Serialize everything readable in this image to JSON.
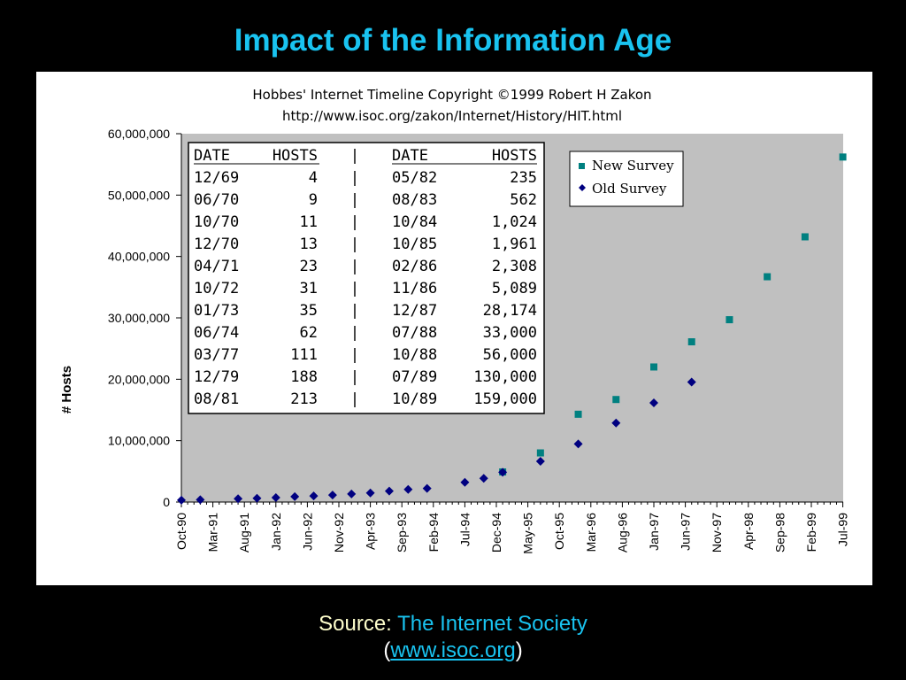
{
  "slide": {
    "title": "Impact of the Information Age",
    "source_prefix": "Source: ",
    "source_name": "The Internet Society",
    "source_open": "(",
    "source_link": "www.isoc.org",
    "source_close": ")"
  },
  "colors": {
    "background": "#000000",
    "title": "#19c3f0",
    "plot_area": "#c0c0c0",
    "new_survey": "#008080",
    "old_survey": "#000080"
  },
  "chart_data": {
    "type": "scatter",
    "title": "Hobbes' Internet Timeline Copyright ©1999 Robert H Zakon",
    "subtitle": "http://www.isoc.org/zakon/Internet/History/HIT.html",
    "ylabel": "# Hosts",
    "xlabel": "",
    "ylim": [
      0,
      60000000
    ],
    "y_ticks": [
      "0",
      "10,000,000",
      "20,000,000",
      "30,000,000",
      "40,000,000",
      "50,000,000",
      "60,000,000"
    ],
    "y_tick_values": [
      0,
      10000000,
      20000000,
      30000000,
      40000000,
      50000000,
      60000000
    ],
    "categories": [
      "Oct-90",
      "Mar-91",
      "Aug-91",
      "Jan-92",
      "Jun-92",
      "Nov-92",
      "Apr-93",
      "Sep-93",
      "Feb-94",
      "Jul-94",
      "Dec-94",
      "May-95",
      "Oct-95",
      "Mar-96",
      "Aug-96",
      "Jan-97",
      "Jun-97",
      "Nov-97",
      "Apr-98",
      "Sep-98",
      "Feb-99",
      "Jul-99"
    ],
    "x_range": [
      "1990-10",
      "1999-10"
    ],
    "grid": false,
    "legend_position": "top-right",
    "series": [
      {
        "name": "New Survey",
        "marker": "square",
        "points": [
          {
            "x": "1995-01",
            "y": 4900000
          },
          {
            "x": "1995-07",
            "y": 8000000
          },
          {
            "x": "1996-01",
            "y": 14300000
          },
          {
            "x": "1996-07",
            "y": 16700000
          },
          {
            "x": "1997-01",
            "y": 22000000
          },
          {
            "x": "1997-07",
            "y": 26100000
          },
          {
            "x": "1998-01",
            "y": 29700000
          },
          {
            "x": "1998-07",
            "y": 36700000
          },
          {
            "x": "1999-01",
            "y": 43200000
          },
          {
            "x": "1999-07",
            "y": 56200000
          }
        ]
      },
      {
        "name": "Old Survey",
        "marker": "diamond",
        "points": [
          {
            "x": "1990-10",
            "y": 313000
          },
          {
            "x": "1991-01",
            "y": 376000
          },
          {
            "x": "1991-07",
            "y": 535000
          },
          {
            "x": "1991-10",
            "y": 617000
          },
          {
            "x": "1992-01",
            "y": 727000
          },
          {
            "x": "1992-04",
            "y": 890000
          },
          {
            "x": "1992-07",
            "y": 992000
          },
          {
            "x": "1992-10",
            "y": 1136000
          },
          {
            "x": "1993-01",
            "y": 1313000
          },
          {
            "x": "1993-04",
            "y": 1486000
          },
          {
            "x": "1993-07",
            "y": 1776000
          },
          {
            "x": "1993-10",
            "y": 2056000
          },
          {
            "x": "1994-01",
            "y": 2217000
          },
          {
            "x": "1994-07",
            "y": 3212000
          },
          {
            "x": "1994-10",
            "y": 3864000
          },
          {
            "x": "1995-01",
            "y": 4852000
          },
          {
            "x": "1995-07",
            "y": 6642000
          },
          {
            "x": "1996-01",
            "y": 9472000
          },
          {
            "x": "1996-07",
            "y": 12881000
          },
          {
            "x": "1997-01",
            "y": 16146000
          },
          {
            "x": "1997-07",
            "y": 19540000
          }
        ]
      }
    ],
    "inset_table": {
      "header": [
        "DATE",
        "HOSTS",
        "|",
        "DATE",
        "HOSTS"
      ],
      "rows": [
        [
          "12/69",
          "4",
          "|",
          "05/82",
          "235"
        ],
        [
          "06/70",
          "9",
          "|",
          "08/83",
          "562"
        ],
        [
          "10/70",
          "11",
          "|",
          "10/84",
          "1,024"
        ],
        [
          "12/70",
          "13",
          "|",
          "10/85",
          "1,961"
        ],
        [
          "04/71",
          "23",
          "|",
          "02/86",
          "2,308"
        ],
        [
          "10/72",
          "31",
          "|",
          "11/86",
          "5,089"
        ],
        [
          "01/73",
          "35",
          "|",
          "12/87",
          "28,174"
        ],
        [
          "06/74",
          "62",
          "|",
          "07/88",
          "33,000"
        ],
        [
          "03/77",
          "111",
          "|",
          "10/88",
          "56,000"
        ],
        [
          "12/79",
          "188",
          "|",
          "07/89",
          "130,000"
        ],
        [
          "08/81",
          "213",
          "|",
          "10/89",
          "159,000"
        ]
      ]
    }
  }
}
